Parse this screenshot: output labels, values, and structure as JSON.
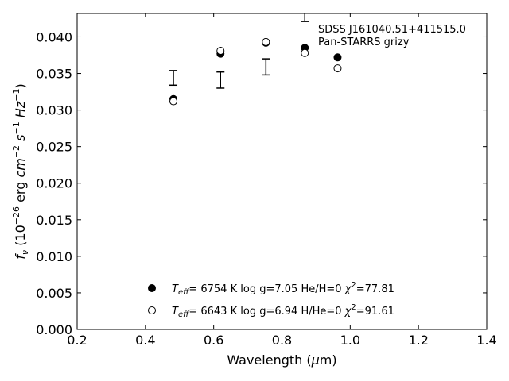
{
  "chart_data": {
    "type": "scatter",
    "xlim": [
      0.2,
      1.4
    ],
    "ylim": [
      0.0,
      0.0432
    ],
    "x_ticks": [
      "0.2",
      "0.4",
      "0.6",
      "0.8",
      "1.0",
      "1.2",
      "1.4"
    ],
    "y_ticks": [
      "0.000",
      "0.005",
      "0.010",
      "0.015",
      "0.020",
      "0.025",
      "0.030",
      "0.035",
      "0.040"
    ],
    "grid": false,
    "legend_position": "lower-center",
    "annotation": {
      "line1": "SDSS J161040.51+411515.0",
      "line2": "Pan-STARRS grizy"
    },
    "observed": {
      "x": [
        0.482,
        0.62,
        0.753,
        0.867,
        0.963
      ],
      "y": [
        0.0344,
        0.0341,
        0.0359,
        0.0431,
        null
      ],
      "yerr": [
        0.001,
        0.0011,
        0.0011,
        0.001,
        null
      ]
    },
    "series": [
      {
        "marker": "filled-circle",
        "teff_value": "6754 K",
        "logg": "log g=7.05",
        "composition": "He/H=0",
        "chi2_value": "=77.81",
        "x": [
          0.482,
          0.62,
          0.753,
          0.867,
          0.963
        ],
        "y": [
          0.0315,
          0.0377,
          0.0392,
          0.0385,
          0.0372
        ]
      },
      {
        "marker": "open-circle",
        "teff_value": "6643 K",
        "logg": "log g=6.94",
        "composition": "H/He=0",
        "chi2_value": "=91.61",
        "x": [
          0.482,
          0.62,
          0.753,
          0.867,
          0.963
        ],
        "y": [
          0.0312,
          0.0381,
          0.0393,
          0.0378,
          0.0357
        ]
      }
    ],
    "colors": {
      "markers": "#000000",
      "axes": "#000000",
      "background": "#ffffff"
    }
  }
}
